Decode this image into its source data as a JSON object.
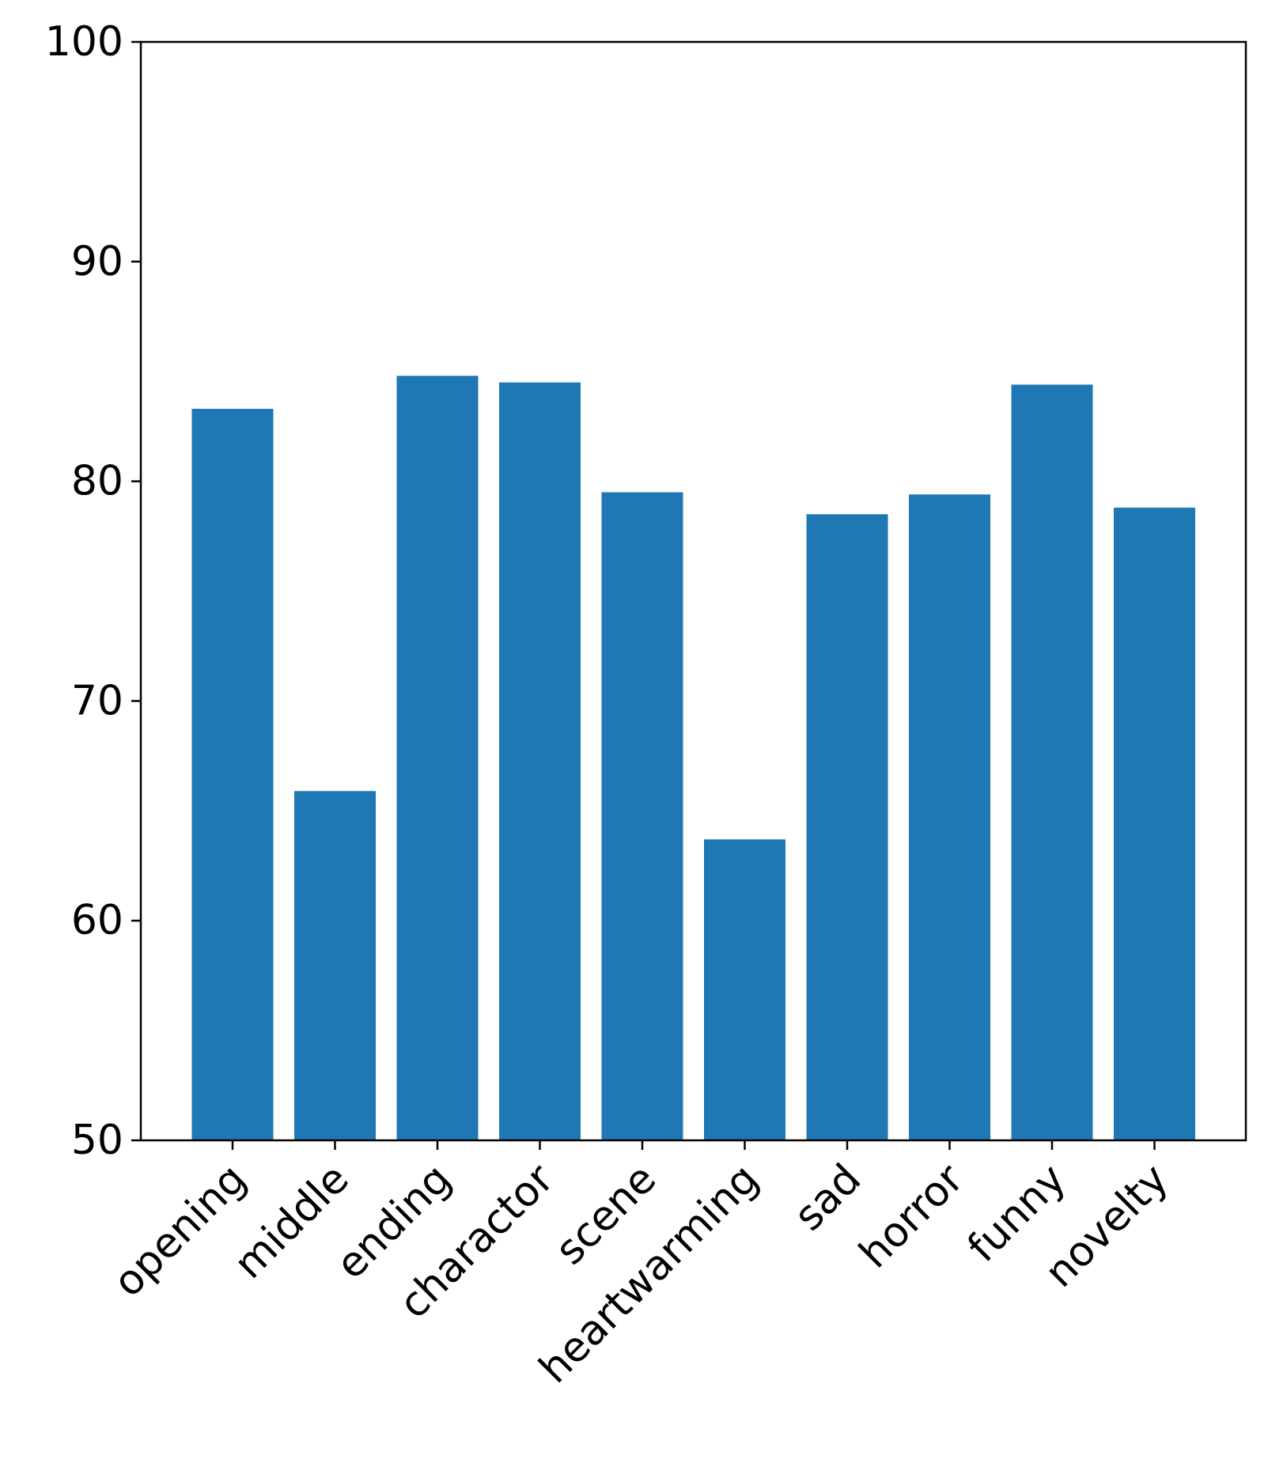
{
  "chart_data": {
    "type": "bar",
    "title": "",
    "xlabel": "",
    "ylabel": "",
    "categories": [
      "opening",
      "middle",
      "ending",
      "charactor",
      "scene",
      "heartwarming",
      "sad",
      "horror",
      "funny",
      "novelty"
    ],
    "values": [
      83.3,
      65.9,
      84.8,
      84.5,
      79.5,
      63.7,
      78.5,
      79.4,
      84.4,
      78.8
    ],
    "ylim": [
      50,
      100
    ],
    "yticks": [
      "50",
      "60",
      "70",
      "80",
      "90",
      "100"
    ],
    "bar_color": "#1f77b4",
    "grid": false,
    "legend": "none"
  }
}
